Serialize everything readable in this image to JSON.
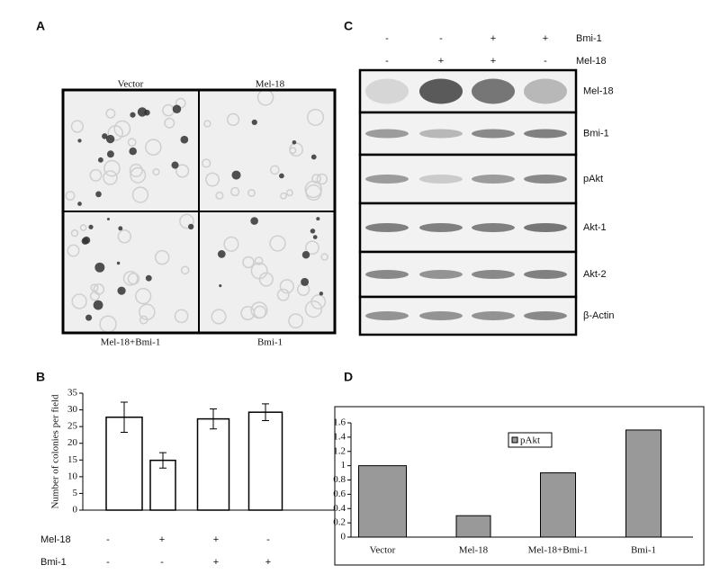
{
  "panel_a": {
    "letter": "A",
    "labels": [
      "Vector",
      "Mel-18",
      "Mel-18+Bmi-1",
      "Bmi-1"
    ]
  },
  "panel_c": {
    "letter": "C",
    "header_rows": [
      {
        "name": "Bmi-1",
        "signs": [
          "-",
          "-",
          "+",
          "+"
        ]
      },
      {
        "name": "Mel-18",
        "signs": [
          "-",
          "+",
          "+",
          "-"
        ]
      }
    ],
    "bands": [
      "Mel-18",
      "Bmi-1",
      "pAkt",
      "Akt-1",
      "Akt-2",
      "β-Actin"
    ]
  },
  "chart_data": [
    {
      "type": "bar",
      "letter": "B",
      "y_label": "Number of colonies per field",
      "values": [
        27.8,
        14.9,
        27.3,
        29.3
      ],
      "errors": [
        4.5,
        2.3,
        3,
        2.5
      ],
      "color": "#ffffff",
      "conditions": [
        {
          "name": "Mel-18",
          "signs": [
            "-",
            "+",
            "+",
            "-"
          ]
        },
        {
          "name": "Bmi-1",
          "signs": [
            "-",
            "-",
            "+",
            "+"
          ]
        }
      ],
      "ylim": [
        0,
        35
      ],
      "yticks": [
        0,
        5,
        10,
        15,
        20,
        25,
        30,
        35
      ]
    },
    {
      "type": "bar",
      "letter": "D",
      "categories": [
        "Vector",
        "Mel-18",
        "Mel-18+Bmi-1",
        "Bmi-1"
      ],
      "series": [
        {
          "name": "pAkt",
          "color": "#999999",
          "values": [
            1.0,
            0.3,
            0.9,
            1.5
          ]
        }
      ],
      "ylim": [
        0,
        1.6
      ],
      "yticks": [
        0,
        0.2,
        0.4,
        0.6,
        0.8,
        1,
        1.2,
        1.4,
        1.6
      ],
      "legend": "top"
    }
  ]
}
